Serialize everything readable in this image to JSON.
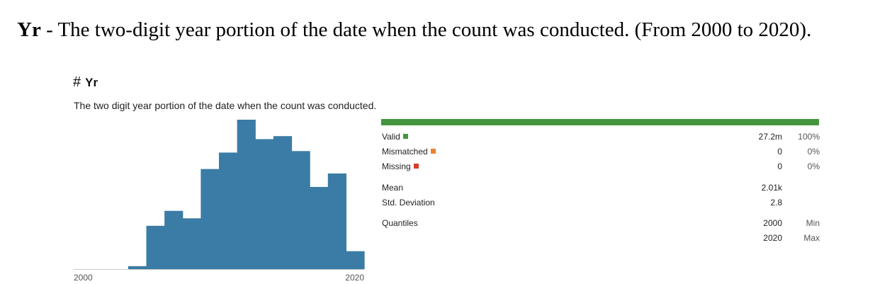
{
  "caption": {
    "bold_name": "Yr",
    "text": " - The two-digit year portion of the date when the count was conducted. (From 2000 to 2020)."
  },
  "column": {
    "type_icon": "hash-icon",
    "type_glyph": "#",
    "name": "Yr",
    "description": "The two digit year portion of the date when the count was conducted."
  },
  "colors": {
    "bar": "#3a7ca5",
    "valid": "#45953f",
    "mismatched": "#e8822e",
    "missing": "#d63b2f"
  },
  "chart_data": {
    "type": "bar",
    "x_tick_labels": [
      "2000",
      "2020"
    ],
    "values": [
      0,
      0,
      0,
      2,
      29,
      39,
      34,
      67,
      78,
      100,
      87,
      89,
      79,
      55,
      64,
      12
    ],
    "ylim": [
      0,
      100
    ]
  },
  "stats": {
    "valid": {
      "label": "Valid",
      "count": "27.2m",
      "pct": "100%"
    },
    "mismatched": {
      "label": "Mismatched",
      "count": "0",
      "pct": "0%"
    },
    "missing": {
      "label": "Missing",
      "count": "0",
      "pct": "0%"
    },
    "mean": {
      "label": "Mean",
      "value": "2.01k"
    },
    "std": {
      "label": "Std. Deviation",
      "value": "2.8"
    },
    "quantiles": {
      "label": "Quantiles",
      "min_value": "2000",
      "min_label": "Min",
      "max_value": "2020",
      "max_label": "Max"
    }
  }
}
